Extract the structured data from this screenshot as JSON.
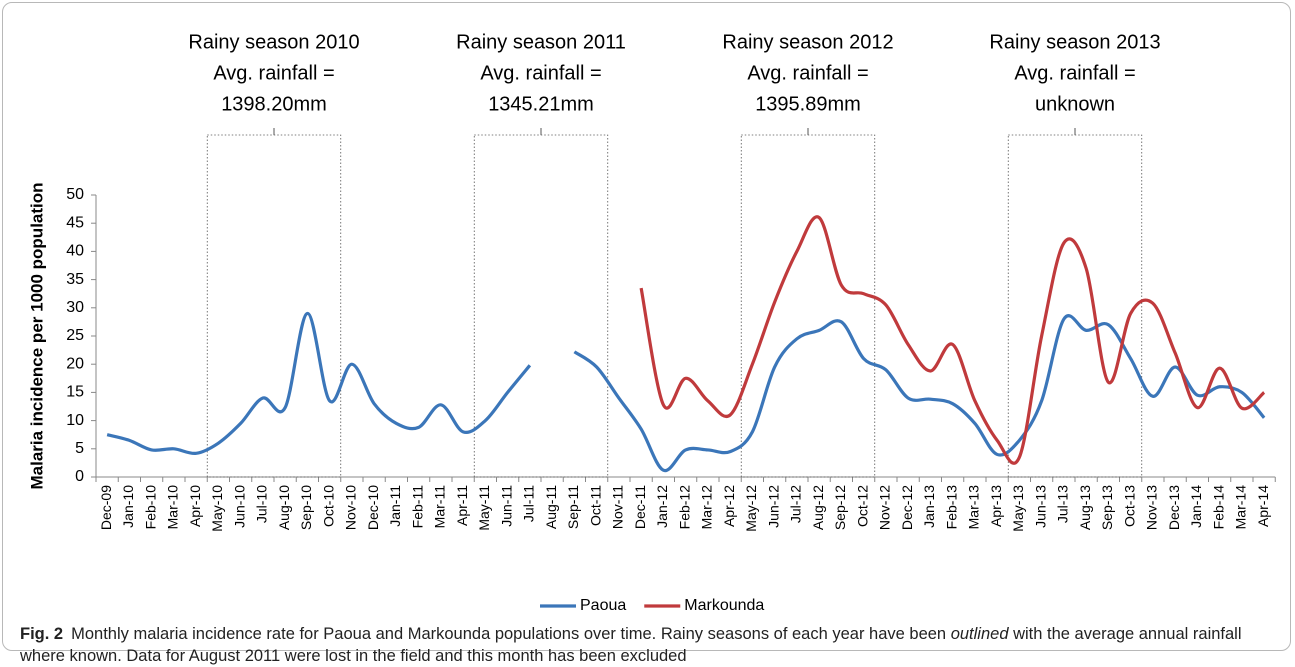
{
  "chart_data": {
    "type": "line",
    "y_label": "Malaria incidence per 1000 population",
    "categories": [
      "Dec-09",
      "Jan-10",
      "Feb-10",
      "Mar-10",
      "Apr-10",
      "May-10",
      "Jun-10",
      "Jul-10",
      "Aug-10",
      "Sep-10",
      "Oct-10",
      "Nov-10",
      "Dec-10",
      "Jan-11",
      "Feb-11",
      "Mar-11",
      "Apr-11",
      "May-11",
      "Jun-11",
      "Jul-11",
      "Aug-11",
      "Sep-11",
      "Oct-11",
      "Nov-11",
      "Dec-11",
      "Jan-12",
      "Feb-12",
      "Mar-12",
      "Apr-12",
      "May-12",
      "Jun-12",
      "Jul-12",
      "Aug-12",
      "Sep-12",
      "Oct-12",
      "Nov-12",
      "Dec-12",
      "Jan-13",
      "Feb-13",
      "Mar-13",
      "Apr-13",
      "May-13",
      "Jun-13",
      "Jul-13",
      "Aug-13",
      "Sep-13",
      "Oct-13",
      "Nov-13",
      "Dec-13",
      "Jan-14",
      "Feb-14",
      "Mar-14",
      "Apr-14"
    ],
    "series": [
      {
        "name": "Paoua",
        "color": "#3b76b9",
        "values": [
          7.5,
          6.5,
          4.8,
          5,
          4.2,
          6,
          9.5,
          14,
          12.3,
          29,
          13.5,
          20,
          13,
          9.5,
          8.8,
          12.8,
          8,
          10,
          15,
          19.8,
          null,
          22.2,
          19.5,
          14,
          8.5,
          1.2,
          4.8,
          4.8,
          4.5,
          8,
          19.5,
          24.5,
          26,
          27.5,
          21,
          19,
          14,
          13.8,
          13,
          9.5,
          4,
          6.5,
          13.5,
          28,
          26,
          27,
          21,
          14.3,
          19.5,
          14.5,
          16,
          15,
          10.5
        ]
      },
      {
        "name": "Markounda",
        "color": "#c03a3c",
        "values": [
          null,
          null,
          null,
          null,
          null,
          null,
          null,
          null,
          null,
          null,
          null,
          null,
          null,
          null,
          null,
          null,
          null,
          null,
          null,
          null,
          null,
          null,
          null,
          null,
          33.5,
          12.8,
          17.5,
          13.5,
          11,
          20,
          31,
          40,
          46,
          34,
          32.5,
          30.5,
          23.5,
          18.8,
          23.5,
          13.5,
          6.5,
          3.5,
          25,
          41.5,
          37,
          16.8,
          29,
          30.8,
          22,
          12.3,
          19.3,
          12.2,
          15
        ]
      }
    ],
    "ylim": [
      0,
      50
    ],
    "yticks": [
      0,
      5,
      10,
      15,
      20,
      25,
      30,
      35,
      40,
      45,
      50
    ],
    "annotations": [
      {
        "lines": [
          "Rainy season 2010",
          "Avg. rainfall =",
          "1398.20mm"
        ]
      },
      {
        "lines": [
          "Rainy season 2011",
          "Avg. rainfall =",
          "1345.21mm"
        ]
      },
      {
        "lines": [
          "Rainy season 2012",
          "Avg. rainfall =",
          "1395.89mm"
        ]
      },
      {
        "lines": [
          "Rainy season 2013",
          "Avg. rainfall =",
          "unknown"
        ]
      }
    ],
    "legend": "bottom"
  },
  "caption": {
    "label": "Fig. 2",
    "parts": [
      "Monthly malaria incidence rate for Paoua and Markounda populations over time. Rainy seasons of each year have been ",
      "outlined",
      " with the average annual rainfall where known. Data for August 2011 were lost in the field and this month has been excluded"
    ]
  }
}
